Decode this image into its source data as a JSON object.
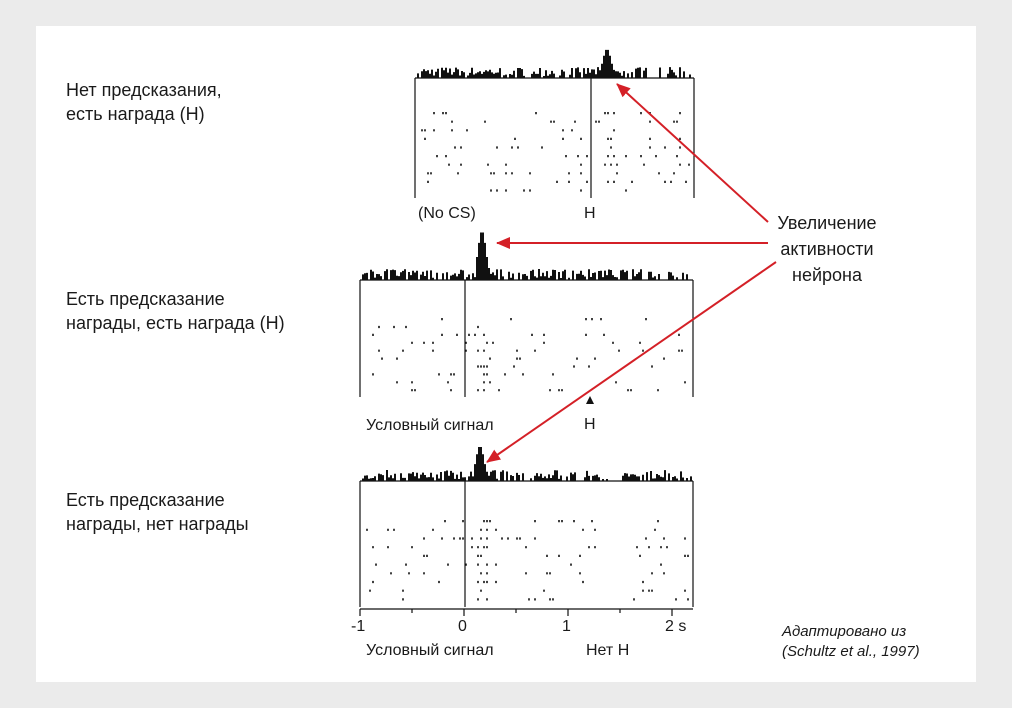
{
  "panels": [
    {
      "label": "Нет предсказания,\nесть награда (Н)",
      "bottom_left": "(No CS)",
      "bottom_mid": "Н"
    },
    {
      "label": "Есть предсказание\nнаграды, есть награда (Н)",
      "bottom_left": "Условный сигнал",
      "bottom_mid": "Н"
    },
    {
      "label": "Есть предсказание\nнаграды, нет награды",
      "bottom_left": "Условный сигнал",
      "bottom_mid": "Нет Н"
    }
  ],
  "annotation": "Увеличение\nактивности\nнейрона",
  "x_axis": {
    "ticks": [
      "-1",
      "0",
      "1",
      "2 s"
    ]
  },
  "credit": "Адаптировано из\n(Schultz et al., 1997)",
  "colors": {
    "arrow": "#d42027",
    "ink": "#111111",
    "background": "#ebebeb",
    "card": "#ffffff"
  },
  "icons": [
    "arrowhead-up-icon"
  ]
}
